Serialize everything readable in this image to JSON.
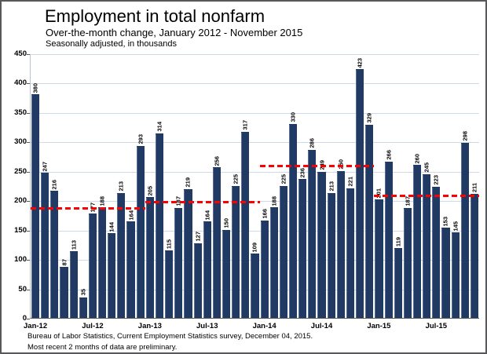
{
  "header": {
    "title": "Employment in total nonfarm",
    "subtitle": "Over-the-month change, January 2012 - November 2015",
    "note": "Seasonally adjusted, in thousands"
  },
  "footer": {
    "line1": "Bureau of Labor Statistics, Current Employment Statistics survey, December 04, 2015.",
    "line2": "Most recent 2 months of data are preliminary."
  },
  "chart_data": {
    "type": "bar",
    "title": "Employment in total nonfarm",
    "subtitle": "Over-the-month change, January 2012 - November 2015",
    "units": "Seasonally adjusted, in thousands",
    "categories": [
      "Jan-12",
      "Feb-12",
      "Mar-12",
      "Apr-12",
      "May-12",
      "Jun-12",
      "Jul-12",
      "Aug-12",
      "Sep-12",
      "Oct-12",
      "Nov-12",
      "Dec-12",
      "Jan-13",
      "Feb-13",
      "Mar-13",
      "Apr-13",
      "May-13",
      "Jun-13",
      "Jul-13",
      "Aug-13",
      "Sep-13",
      "Oct-13",
      "Nov-13",
      "Dec-13",
      "Jan-14",
      "Feb-14",
      "Mar-14",
      "Apr-14",
      "May-14",
      "Jun-14",
      "Jul-14",
      "Aug-14",
      "Sep-14",
      "Oct-14",
      "Nov-14",
      "Dec-14",
      "Jan-15",
      "Feb-15",
      "Mar-15",
      "Apr-15",
      "May-15",
      "Jun-15",
      "Jul-15",
      "Aug-15",
      "Sep-15",
      "Oct-15",
      "Nov-15"
    ],
    "values": [
      380,
      247,
      216,
      87,
      113,
      35,
      177,
      188,
      144,
      213,
      164,
      293,
      205,
      314,
      115,
      187,
      219,
      127,
      164,
      256,
      150,
      225,
      317,
      109,
      166,
      188,
      225,
      330,
      236,
      286,
      249,
      213,
      250,
      221,
      423,
      329,
      201,
      266,
      119,
      187,
      260,
      245,
      223,
      153,
      145,
      298,
      211
    ],
    "x_tick_labels": [
      "Jan-12",
      "Jul-12",
      "Jan-13",
      "Jul-13",
      "Jan-14",
      "Jul-14",
      "Jan-15",
      "Jul-15"
    ],
    "x_tick_indices": [
      0,
      6,
      12,
      18,
      24,
      30,
      36,
      42
    ],
    "ylim": [
      0,
      450
    ],
    "y_tick_step": 50,
    "grid": true,
    "legend": "none",
    "bar_color": "#203a64",
    "gridline_color": "#ccdaec",
    "avg_line_color": "#ff0000",
    "avg_lines": [
      {
        "year": "2012",
        "value": 188,
        "start_index": 0,
        "end_index": 11
      },
      {
        "year": "2013",
        "value": 199,
        "start_index": 12,
        "end_index": 23
      },
      {
        "year": "2014",
        "value": 260,
        "start_index": 24,
        "end_index": 35
      },
      {
        "year": "2015",
        "value": 210,
        "start_index": 36,
        "end_index": 46
      }
    ]
  }
}
